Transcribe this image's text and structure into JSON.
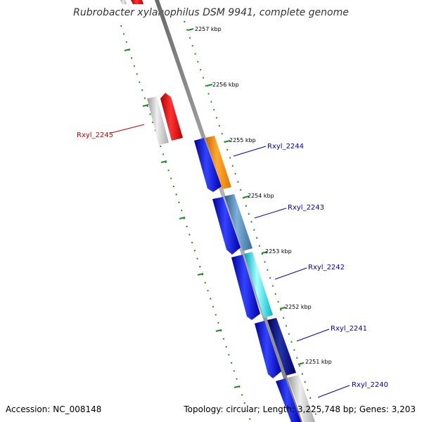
{
  "title": "Rubrobacter xylanophilus DSM 9941, complete genome",
  "footer": {
    "accession": "Accession: NC_008148",
    "summary": "Topology: circular; Length: 3,225,748 bp; Genes: 3,203"
  },
  "scale": {
    "unit": "kbp",
    "ticks": [
      "2257 kbp",
      "2256 kbp",
      "2255 kbp",
      "2254 kbp",
      "2253 kbp",
      "2252 kbp",
      "2251 kbp"
    ]
  },
  "genes": [
    {
      "label": "Rxyl_2245",
      "strand": "reverse",
      "label_color": "#cc0000"
    },
    {
      "label": "Rxyl_2244",
      "strand": "forward",
      "label_color": "#0000cc"
    },
    {
      "label": "Rxyl_2243",
      "strand": "forward",
      "label_color": "#0000cc"
    },
    {
      "label": "Rxyl_2242",
      "strand": "forward",
      "label_color": "#0000cc"
    },
    {
      "label": "Rxyl_2241",
      "strand": "forward",
      "label_color": "#0000cc"
    },
    {
      "label": "Rxyl_2240",
      "strand": "forward",
      "label_color": "#0000cc"
    }
  ],
  "colors": {
    "backbone": "#888888",
    "tick_marks": "#228B22",
    "reverse_cds": "#ee1111",
    "forward_cds": "#1111dd",
    "gene_track": "#bbbbbb",
    "cog_colors": [
      "#ff8800",
      "#4682b4",
      "#00e5ee",
      "#000080",
      "#cccccc"
    ]
  }
}
